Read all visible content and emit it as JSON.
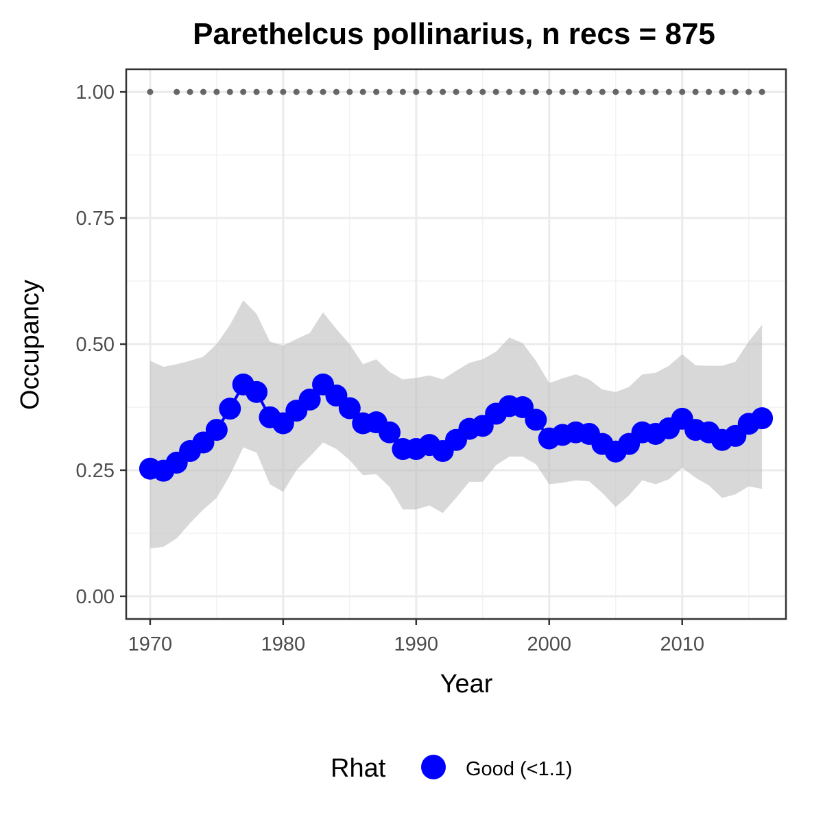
{
  "chart_data": {
    "type": "line",
    "title": "Parethelcus pollinarius, n recs = 875",
    "xlabel": "Year",
    "ylabel": "Occupancy",
    "xlim": [
      1968.2,
      2017.8
    ],
    "ylim": [
      -0.045,
      1.045
    ],
    "x_ticks": [
      1970,
      1980,
      1990,
      2000,
      2010
    ],
    "x_tick_labels": [
      "1970",
      "1980",
      "1990",
      "2000",
      "2010"
    ],
    "y_ticks": [
      0,
      0.25,
      0.5,
      0.75,
      1
    ],
    "y_tick_labels": [
      "0.00",
      "0.25",
      "0.50",
      "0.75",
      "1.00"
    ],
    "grid": true,
    "x": [
      1970,
      1971,
      1972,
      1973,
      1974,
      1975,
      1976,
      1977,
      1978,
      1979,
      1980,
      1981,
      1982,
      1983,
      1984,
      1985,
      1986,
      1987,
      1988,
      1989,
      1990,
      1991,
      1992,
      1993,
      1994,
      1995,
      1996,
      1997,
      1998,
      1999,
      2000,
      2001,
      2002,
      2003,
      2004,
      2005,
      2006,
      2007,
      2008,
      2009,
      2010,
      2011,
      2012,
      2013,
      2014,
      2015,
      2016
    ],
    "series": [
      {
        "name": "Good (<1.1)",
        "color": "#0000ff",
        "values": [
          0.253,
          0.249,
          0.265,
          0.288,
          0.305,
          0.33,
          0.372,
          0.42,
          0.405,
          0.355,
          0.343,
          0.368,
          0.39,
          0.42,
          0.398,
          0.373,
          0.343,
          0.345,
          0.325,
          0.292,
          0.292,
          0.3,
          0.288,
          0.31,
          0.332,
          0.338,
          0.362,
          0.377,
          0.375,
          0.35,
          0.313,
          0.32,
          0.325,
          0.322,
          0.302,
          0.287,
          0.302,
          0.325,
          0.322,
          0.333,
          0.352,
          0.33,
          0.325,
          0.31,
          0.318,
          0.342,
          0.353
        ],
        "lower": [
          0.095,
          0.098,
          0.115,
          0.145,
          0.172,
          0.195,
          0.24,
          0.295,
          0.285,
          0.222,
          0.207,
          0.25,
          0.277,
          0.305,
          0.292,
          0.27,
          0.24,
          0.242,
          0.217,
          0.172,
          0.172,
          0.18,
          0.165,
          0.195,
          0.227,
          0.227,
          0.26,
          0.277,
          0.277,
          0.262,
          0.222,
          0.225,
          0.23,
          0.228,
          0.205,
          0.177,
          0.2,
          0.23,
          0.222,
          0.232,
          0.255,
          0.235,
          0.22,
          0.195,
          0.202,
          0.218,
          0.213
        ],
        "upper": [
          0.467,
          0.455,
          0.46,
          0.467,
          0.475,
          0.5,
          0.538,
          0.587,
          0.56,
          0.505,
          0.497,
          0.51,
          0.522,
          0.563,
          0.53,
          0.5,
          0.46,
          0.47,
          0.445,
          0.43,
          0.433,
          0.438,
          0.43,
          0.447,
          0.463,
          0.47,
          0.485,
          0.513,
          0.502,
          0.467,
          0.423,
          0.432,
          0.44,
          0.43,
          0.41,
          0.405,
          0.415,
          0.44,
          0.443,
          0.457,
          0.48,
          0.458,
          0.457,
          0.457,
          0.465,
          0.505,
          0.538
        ]
      }
    ],
    "records_dots": {
      "color": "#666666",
      "y": 1.0,
      "x": [
        1970,
        1972,
        1973,
        1974,
        1975,
        1976,
        1977,
        1978,
        1979,
        1980,
        1981,
        1982,
        1983,
        1984,
        1985,
        1986,
        1987,
        1988,
        1989,
        1990,
        1991,
        1992,
        1993,
        1994,
        1995,
        1996,
        1997,
        1998,
        1999,
        2000,
        2001,
        2002,
        2003,
        2004,
        2005,
        2006,
        2007,
        2008,
        2009,
        2010,
        2011,
        2012,
        2013,
        2014,
        2015,
        2016
      ]
    },
    "ribbon_color": "#bebebe",
    "legend": {
      "position": "bottom",
      "title": "Rhat",
      "entries": [
        {
          "label": "Good (<1.1)",
          "color": "#0000ff"
        }
      ]
    }
  }
}
